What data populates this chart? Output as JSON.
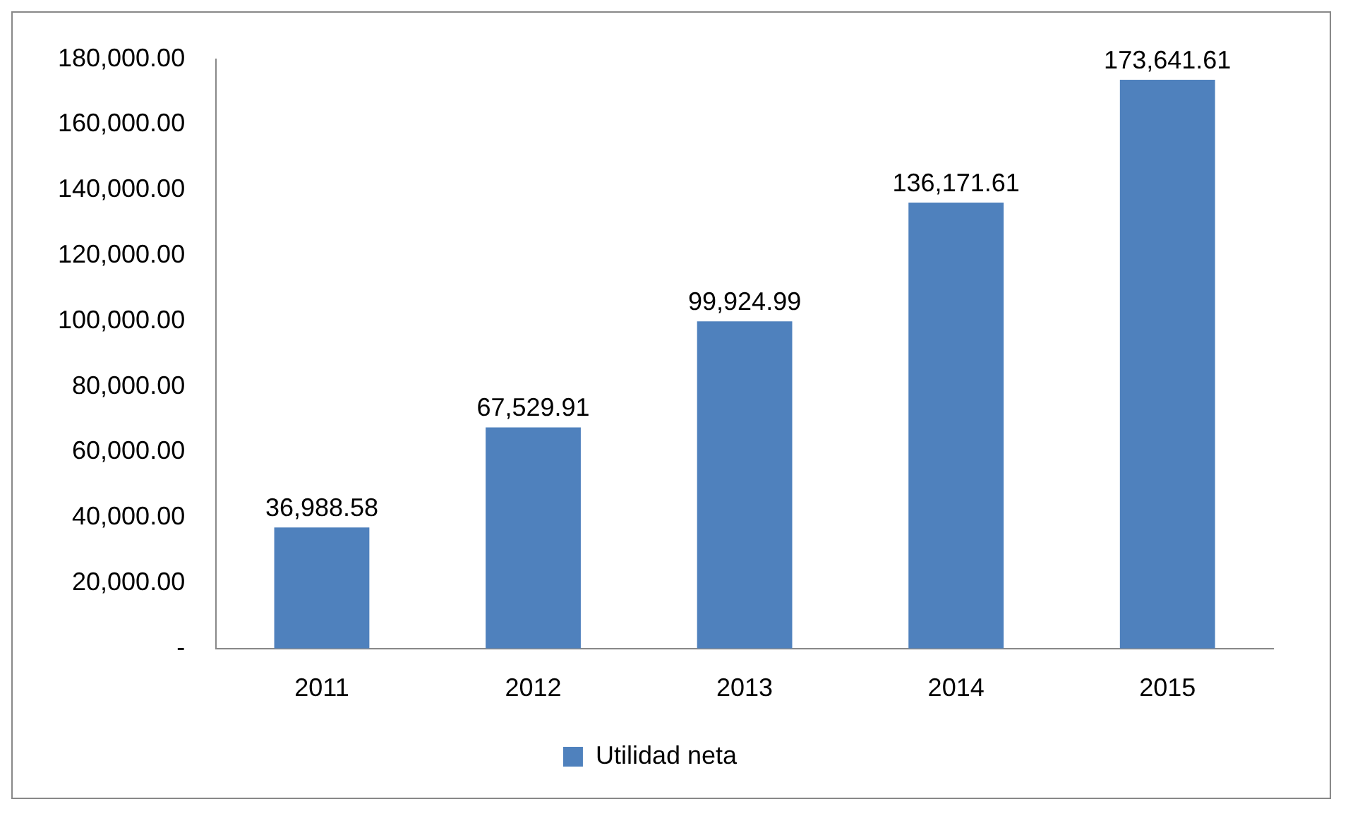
{
  "chart_data": {
    "type": "bar",
    "categories": [
      "2011",
      "2012",
      "2013",
      "2014",
      "2015"
    ],
    "series": [
      {
        "name": "Utilidad neta",
        "color": "#4f81bd",
        "values": [
          36988.58,
          67529.91,
          99924.99,
          136171.61,
          173641.61
        ],
        "value_labels": [
          "36,988.58",
          "67,529.91",
          "99,924.99",
          "136,171.61",
          "173,641.61"
        ]
      }
    ],
    "ylim": [
      0,
      180000
    ],
    "yticks": [
      {
        "value": 0,
        "label": "-"
      },
      {
        "value": 20000,
        "label": "20,000.00"
      },
      {
        "value": 40000,
        "label": "40,000.00"
      },
      {
        "value": 60000,
        "label": "60,000.00"
      },
      {
        "value": 80000,
        "label": "80,000.00"
      },
      {
        "value": 100000,
        "label": "100,000.00"
      },
      {
        "value": 120000,
        "label": "120,000.00"
      },
      {
        "value": 140000,
        "label": "140,000.00"
      },
      {
        "value": 160000,
        "label": "160,000.00"
      },
      {
        "value": 180000,
        "label": "180,000.00"
      }
    ],
    "grid": false,
    "legend": "bottom"
  }
}
